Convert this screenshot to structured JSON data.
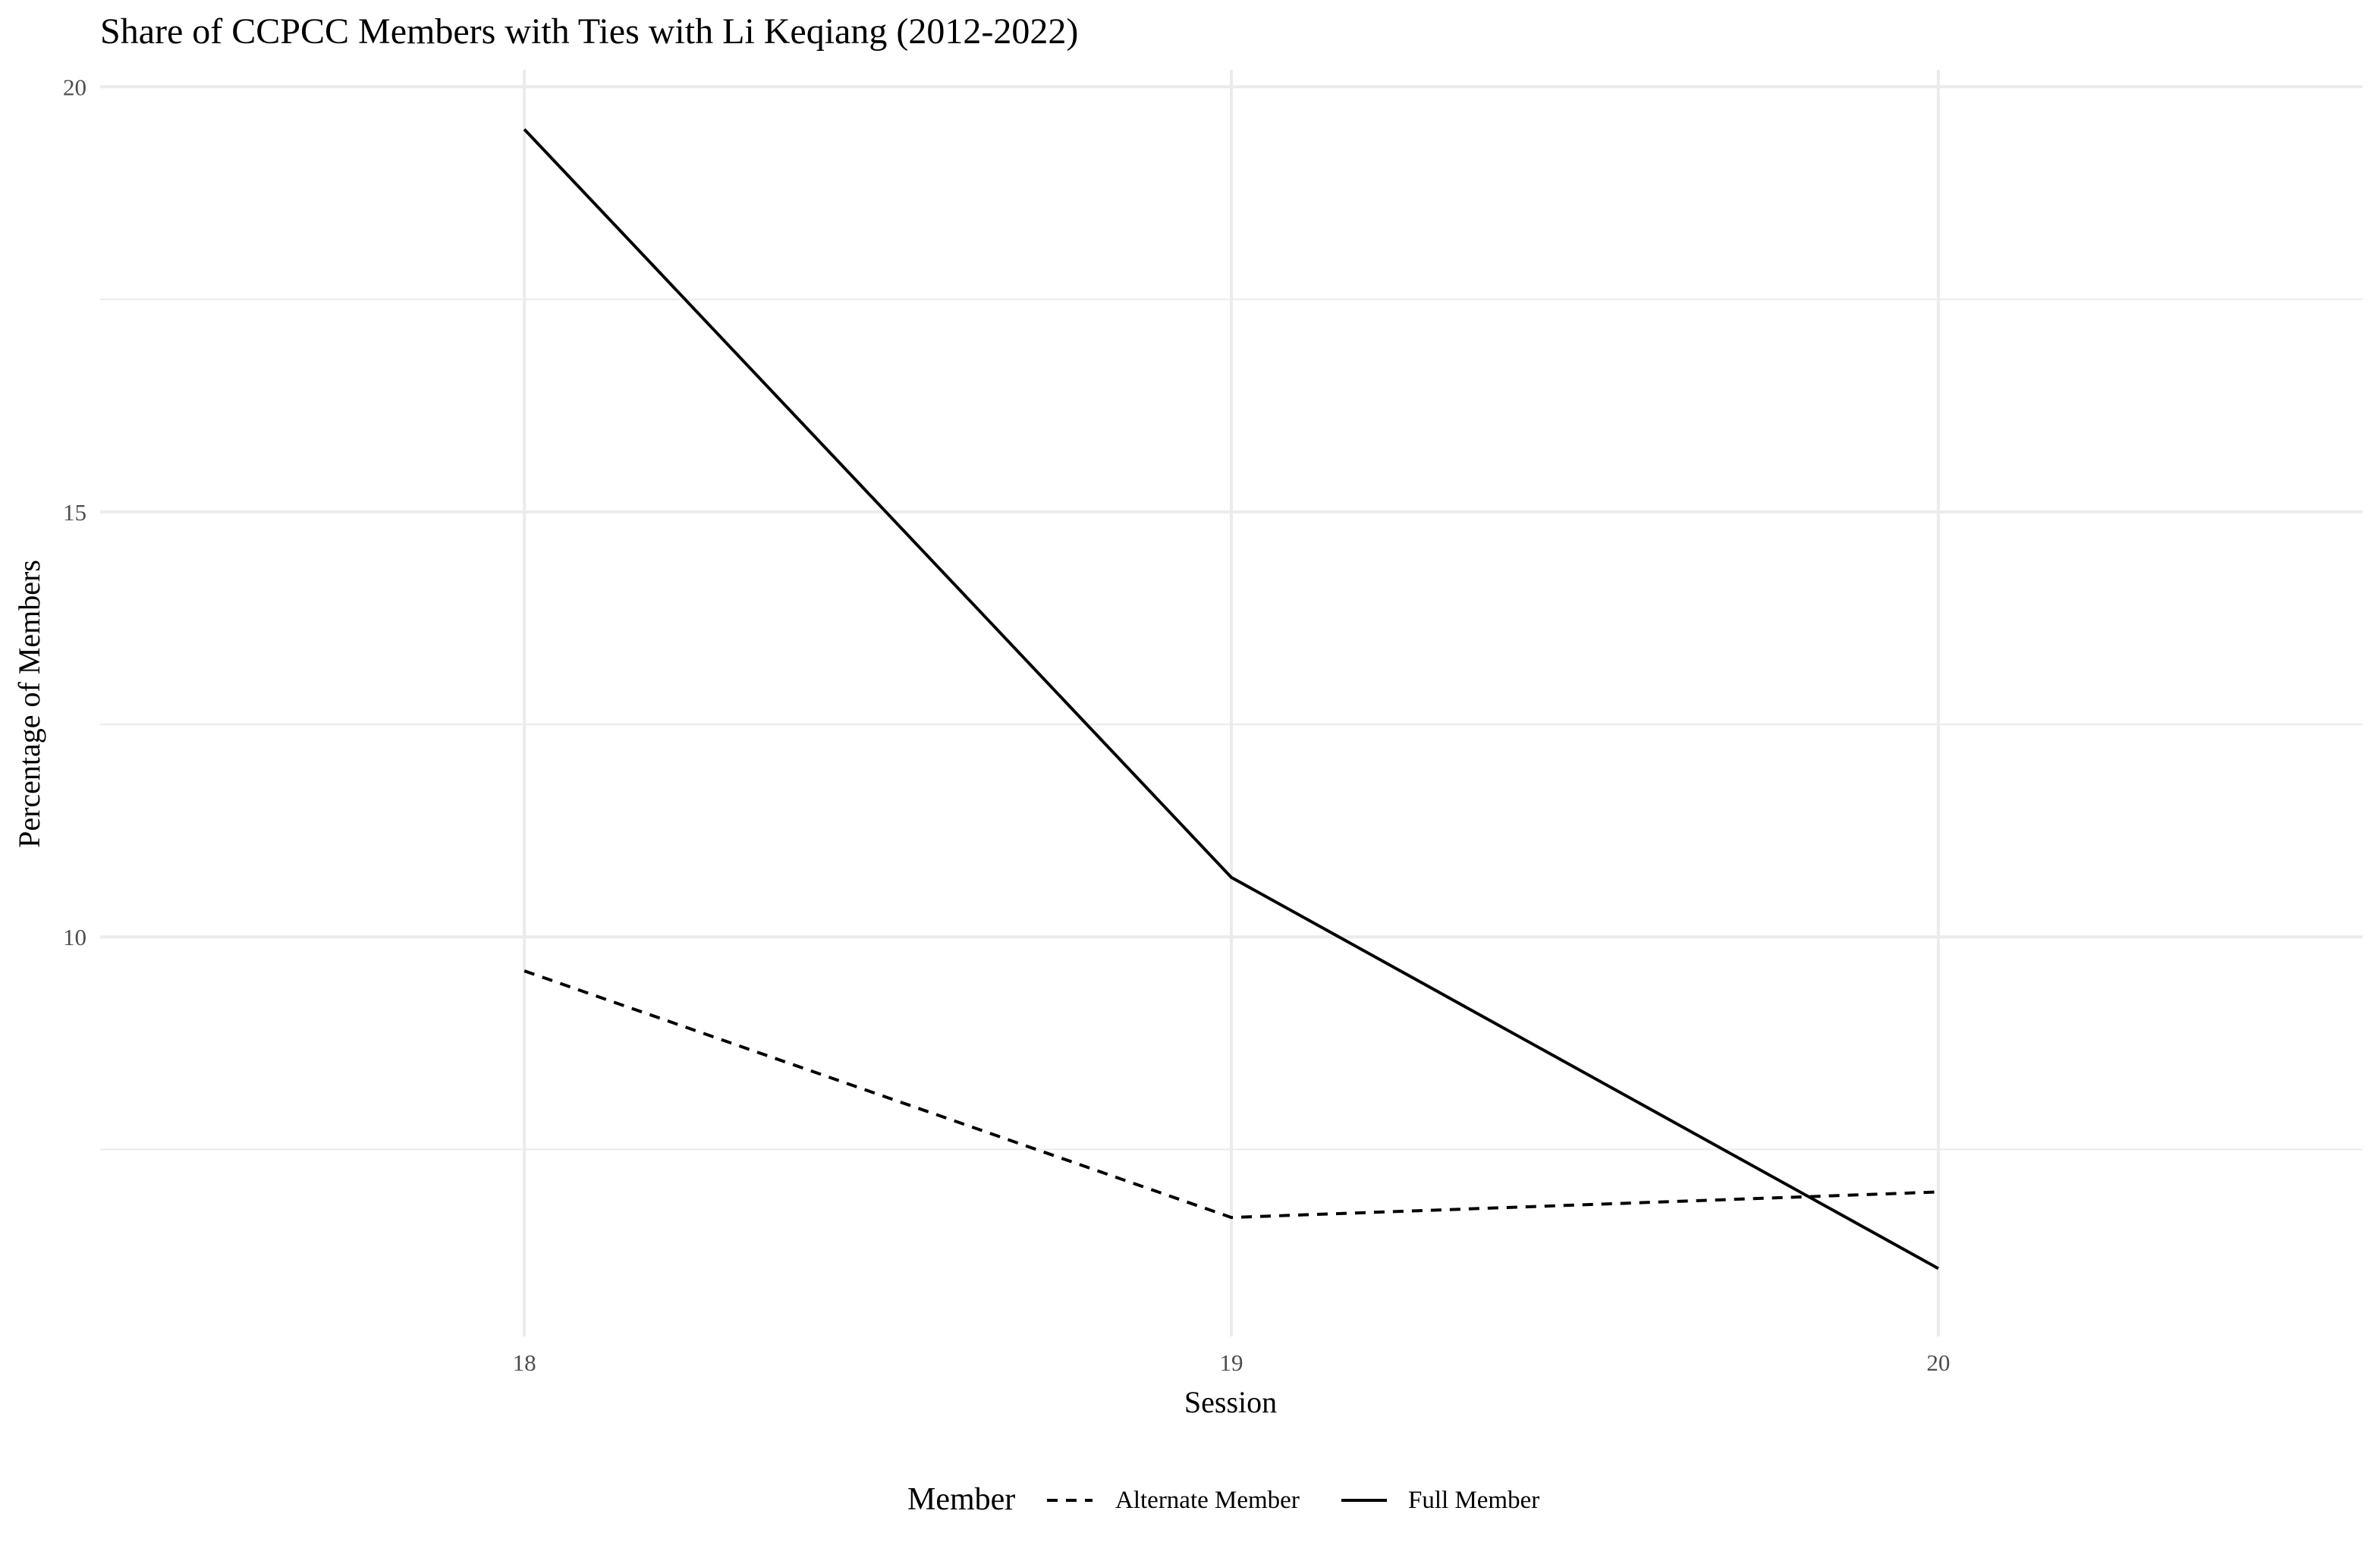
{
  "chart_data": {
    "type": "line",
    "title": "Share of CCPCC Members with Ties with Li Keqiang (2012-2022)",
    "xlabel": "Session",
    "ylabel": "Percentage of Members",
    "x": [
      18,
      19,
      20
    ],
    "x_ticks": [
      "18",
      "19",
      "20"
    ],
    "xlim": [
      17.4,
      20.6
    ],
    "ylim": [
      5.3,
      20.2
    ],
    "y_ticks": [
      "10",
      "15",
      "20"
    ],
    "grid": true,
    "legend": {
      "title": "Member",
      "position": "bottom"
    },
    "series": [
      {
        "name": "Alternate Member",
        "values": [
          9.6,
          6.7,
          7.0
        ],
        "dash": "dashed",
        "color": "#000000"
      },
      {
        "name": "Full Member",
        "values": [
          19.5,
          10.7,
          6.1
        ],
        "dash": "solid",
        "color": "#000000"
      }
    ]
  }
}
